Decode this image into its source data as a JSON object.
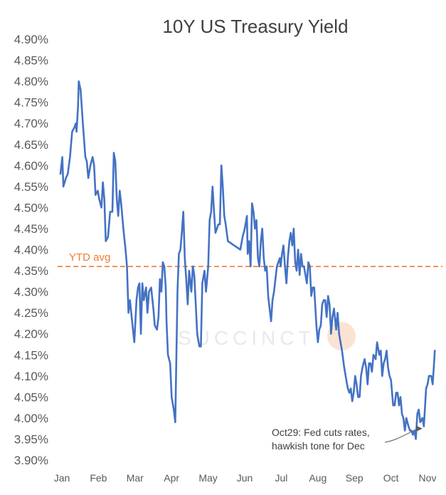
{
  "chart_data": {
    "type": "line",
    "title": "10Y US Treasury Yield",
    "xlabel": "",
    "ylabel": "",
    "ylim": [
      3.9,
      4.9
    ],
    "yticks": [
      "4.90%",
      "4.85%",
      "4.80%",
      "4.75%",
      "4.70%",
      "4.65%",
      "4.60%",
      "4.55%",
      "4.50%",
      "4.45%",
      "4.40%",
      "4.35%",
      "4.30%",
      "4.25%",
      "4.20%",
      "4.15%",
      "4.10%",
      "4.05%",
      "4.00%",
      "3.95%",
      "3.90%"
    ],
    "categories": [
      "Jan",
      "Feb",
      "Mar",
      "Apr",
      "May",
      "Jun",
      "Jul",
      "Aug",
      "Sep",
      "Oct",
      "Nov"
    ],
    "series": [
      {
        "name": "10Y US Treasury Yield",
        "color": "#4472c4",
        "points": [
          [
            0,
            4.58
          ],
          [
            0.05,
            4.62
          ],
          [
            0.08,
            4.55
          ],
          [
            0.15,
            4.57
          ],
          [
            0.2,
            4.58
          ],
          [
            0.26,
            4.62
          ],
          [
            0.32,
            4.68
          ],
          [
            0.38,
            4.69
          ],
          [
            0.42,
            4.7
          ],
          [
            0.44,
            4.68
          ],
          [
            0.48,
            4.74
          ],
          [
            0.5,
            4.8
          ],
          [
            0.55,
            4.78
          ],
          [
            0.62,
            4.69
          ],
          [
            0.68,
            4.62
          ],
          [
            0.72,
            4.61
          ],
          [
            0.76,
            4.57
          ],
          [
            0.82,
            4.6
          ],
          [
            0.88,
            4.62
          ],
          [
            0.92,
            4.6
          ],
          [
            0.96,
            4.53
          ],
          [
            1.02,
            4.54
          ],
          [
            1.06,
            4.52
          ],
          [
            1.12,
            4.5
          ],
          [
            1.16,
            4.56
          ],
          [
            1.2,
            4.52
          ],
          [
            1.24,
            4.42
          ],
          [
            1.3,
            4.43
          ],
          [
            1.36,
            4.49
          ],
          [
            1.42,
            4.49
          ],
          [
            1.46,
            4.63
          ],
          [
            1.5,
            4.61
          ],
          [
            1.54,
            4.52
          ],
          [
            1.58,
            4.48
          ],
          [
            1.62,
            4.54
          ],
          [
            1.66,
            4.51
          ],
          [
            1.72,
            4.45
          ],
          [
            1.78,
            4.4
          ],
          [
            1.82,
            4.36
          ],
          [
            1.86,
            4.25
          ],
          [
            1.9,
            4.28
          ],
          [
            1.96,
            4.23
          ],
          [
            2.02,
            4.18
          ],
          [
            2.08,
            4.28
          ],
          [
            2.12,
            4.31
          ],
          [
            2.16,
            4.32
          ],
          [
            2.2,
            4.2
          ],
          [
            2.24,
            4.32
          ],
          [
            2.28,
            4.28
          ],
          [
            2.34,
            4.31
          ],
          [
            2.38,
            4.25
          ],
          [
            2.42,
            4.3
          ],
          [
            2.48,
            4.31
          ],
          [
            2.54,
            4.26
          ],
          [
            2.58,
            4.22
          ],
          [
            2.64,
            4.21
          ],
          [
            2.68,
            4.24
          ],
          [
            2.72,
            4.33
          ],
          [
            2.76,
            4.3
          ],
          [
            2.8,
            4.37
          ],
          [
            2.84,
            4.36
          ],
          [
            2.88,
            4.31
          ],
          [
            2.9,
            4.23
          ],
          [
            2.94,
            4.15
          ],
          [
            3.0,
            4.13
          ],
          [
            3.04,
            4.05
          ],
          [
            3.1,
            4.02
          ],
          [
            3.14,
            3.99
          ],
          [
            3.18,
            4.2
          ],
          [
            3.2,
            4.3
          ],
          [
            3.24,
            4.39
          ],
          [
            3.28,
            4.4
          ],
          [
            3.32,
            4.44
          ],
          [
            3.36,
            4.49
          ],
          [
            3.4,
            4.38
          ],
          [
            3.44,
            4.33
          ],
          [
            3.48,
            4.27
          ],
          [
            3.52,
            4.35
          ],
          [
            3.58,
            4.3
          ],
          [
            3.62,
            4.36
          ],
          [
            3.66,
            4.34
          ],
          [
            3.7,
            4.27
          ],
          [
            3.74,
            4.2
          ],
          [
            3.8,
            4.17
          ],
          [
            3.84,
            4.17
          ],
          [
            3.88,
            4.32
          ],
          [
            3.94,
            4.35
          ],
          [
            3.98,
            4.3
          ],
          [
            4.04,
            4.36
          ],
          [
            4.08,
            4.47
          ],
          [
            4.12,
            4.49
          ],
          [
            4.16,
            4.55
          ],
          [
            4.2,
            4.49
          ],
          [
            4.24,
            4.44
          ],
          [
            4.28,
            4.45
          ],
          [
            4.32,
            4.46
          ],
          [
            4.36,
            4.46
          ],
          [
            4.4,
            4.6
          ],
          [
            4.44,
            4.55
          ],
          [
            4.48,
            4.48
          ],
          [
            4.52,
            4.46
          ],
          [
            4.58,
            4.42
          ],
          [
            4.92,
            4.4
          ],
          [
            4.98,
            4.43
          ],
          [
            5.04,
            4.45
          ],
          [
            5.1,
            4.48
          ],
          [
            5.12,
            4.39
          ],
          [
            5.16,
            4.42
          ],
          [
            5.2,
            4.36
          ],
          [
            5.24,
            4.51
          ],
          [
            5.28,
            4.49
          ],
          [
            5.32,
            4.45
          ],
          [
            5.36,
            4.47
          ],
          [
            5.4,
            4.38
          ],
          [
            5.44,
            4.36
          ],
          [
            5.48,
            4.42
          ],
          [
            5.52,
            4.45
          ],
          [
            5.56,
            4.38
          ],
          [
            5.6,
            4.35
          ],
          [
            5.64,
            4.36
          ],
          [
            5.68,
            4.29
          ],
          [
            5.72,
            4.26
          ],
          [
            5.76,
            4.23
          ],
          [
            5.8,
            4.28
          ],
          [
            5.84,
            4.3
          ],
          [
            5.88,
            4.33
          ],
          [
            5.92,
            4.36
          ],
          [
            5.96,
            4.37
          ],
          [
            6.0,
            4.38
          ],
          [
            6.02,
            4.36
          ],
          [
            6.06,
            4.39
          ],
          [
            6.1,
            4.41
          ],
          [
            6.14,
            4.36
          ],
          [
            6.18,
            4.32
          ],
          [
            6.22,
            4.38
          ],
          [
            6.26,
            4.42
          ],
          [
            6.3,
            4.44
          ],
          [
            6.34,
            4.41
          ],
          [
            6.38,
            4.45
          ],
          [
            6.42,
            4.37
          ],
          [
            6.46,
            4.35
          ],
          [
            6.5,
            4.4
          ],
          [
            6.54,
            4.34
          ],
          [
            6.58,
            4.39
          ],
          [
            6.62,
            4.36
          ],
          [
            6.66,
            4.36
          ],
          [
            6.7,
            4.34
          ],
          [
            6.74,
            4.32
          ],
          [
            6.78,
            4.37
          ],
          [
            6.82,
            4.36
          ],
          [
            6.86,
            4.29
          ],
          [
            6.9,
            4.31
          ],
          [
            6.94,
            4.31
          ],
          [
            7.0,
            4.22
          ],
          [
            7.04,
            4.18
          ],
          [
            7.08,
            4.21
          ],
          [
            7.12,
            4.22
          ],
          [
            7.16,
            4.27
          ],
          [
            7.2,
            4.28
          ],
          [
            7.24,
            4.28
          ],
          [
            7.28,
            4.24
          ],
          [
            7.32,
            4.29
          ],
          [
            7.36,
            4.27
          ],
          [
            7.4,
            4.2
          ],
          [
            7.44,
            4.24
          ],
          [
            7.48,
            4.26
          ],
          [
            7.54,
            4.21
          ],
          [
            7.58,
            4.25
          ],
          [
            7.62,
            4.2
          ],
          [
            7.66,
            4.18
          ],
          [
            7.7,
            4.16
          ],
          [
            7.76,
            4.12
          ],
          [
            7.82,
            4.09
          ],
          [
            7.86,
            4.07
          ],
          [
            7.9,
            4.06
          ],
          [
            7.94,
            4.07
          ],
          [
            7.98,
            4.04
          ],
          [
            8.02,
            4.06
          ],
          [
            8.06,
            4.1
          ],
          [
            8.1,
            4.08
          ],
          [
            8.14,
            4.05
          ],
          [
            8.18,
            4.05
          ],
          [
            8.22,
            4.1
          ],
          [
            8.26,
            4.12
          ],
          [
            8.32,
            4.14
          ],
          [
            8.36,
            4.12
          ],
          [
            8.4,
            4.08
          ],
          [
            8.44,
            4.13
          ],
          [
            8.48,
            4.13
          ],
          [
            8.52,
            4.11
          ],
          [
            8.56,
            4.15
          ],
          [
            8.62,
            4.14
          ],
          [
            8.66,
            4.18
          ],
          [
            8.72,
            4.15
          ],
          [
            8.76,
            4.16
          ],
          [
            8.8,
            4.1
          ],
          [
            8.84,
            4.13
          ],
          [
            8.88,
            4.14
          ],
          [
            8.92,
            4.16
          ],
          [
            8.96,
            4.12
          ],
          [
            9.0,
            4.1
          ],
          [
            9.04,
            4.09
          ],
          [
            9.1,
            4.03
          ],
          [
            9.14,
            4.03
          ],
          [
            9.18,
            4.06
          ],
          [
            9.22,
            4.06
          ],
          [
            9.26,
            4.03
          ],
          [
            9.3,
            4.05
          ],
          [
            9.34,
            4.01
          ],
          [
            9.38,
            4.0
          ],
          [
            9.42,
            3.97
          ],
          [
            9.46,
            4.0
          ],
          [
            9.52,
            3.98
          ],
          [
            9.56,
            3.97
          ],
          [
            9.6,
            3.97
          ],
          [
            9.64,
            3.96
          ],
          [
            9.68,
            3.97
          ],
          [
            9.72,
            3.95
          ],
          [
            9.76,
            4.01
          ],
          [
            9.8,
            4.02
          ],
          [
            9.84,
            3.99
          ],
          [
            9.9,
            4.0
          ],
          [
            9.94,
            3.98
          ],
          [
            10.0,
            4.07
          ],
          [
            10.04,
            4.08
          ],
          [
            10.08,
            4.1
          ],
          [
            10.14,
            4.1
          ],
          [
            10.18,
            4.08
          ],
          [
            10.24,
            4.16
          ]
        ]
      }
    ],
    "reference_line": {
      "label": "YTD avg",
      "value": 4.36,
      "color": "#ed7d31",
      "style": "dashed"
    },
    "annotation": {
      "lines": [
        "Oct29: Fed cuts rates,",
        "hawkish tone for Dec"
      ],
      "at_x": 9.94,
      "at_y": 3.975
    },
    "watermark": "SUCCINCT",
    "grid": false,
    "legend": "none"
  }
}
